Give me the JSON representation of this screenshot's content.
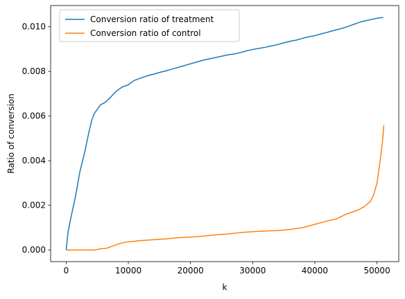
{
  "chart_data": {
    "type": "line",
    "title": "",
    "xlabel": "k",
    "ylabel": "Ratio of conversion",
    "xlim": [
      -2500,
      53500
    ],
    "ylim": [
      -0.00052,
      0.01095
    ],
    "xticks": [
      0,
      10000,
      20000,
      30000,
      40000,
      50000
    ],
    "xtick_labels": [
      "0",
      "10000",
      "20000",
      "30000",
      "40000",
      "50000"
    ],
    "yticks": [
      0.0,
      0.002,
      0.004,
      0.006,
      0.008,
      0.01
    ],
    "ytick_labels": [
      "0.000",
      "0.002",
      "0.004",
      "0.006",
      "0.008",
      "0.010"
    ],
    "grid": false,
    "legend_position": "top-left",
    "series": [
      {
        "name": "Conversion ratio of treatment",
        "color": "#1f77b4",
        "x": [
          0,
          300,
          800,
          1500,
          2200,
          3000,
          3600,
          4100,
          4500,
          5000,
          5500,
          6200,
          7000,
          8000,
          9000,
          10000,
          11000,
          12000,
          13000,
          14000,
          15000,
          16000,
          17000,
          18000,
          19000,
          20000,
          21000,
          22000,
          23000,
          24000,
          25000,
          26000,
          27000,
          28000,
          29000,
          30000,
          31000,
          32000,
          33000,
          34000,
          35000,
          36000,
          37000,
          38000,
          39000,
          40000,
          41000,
          42000,
          43000,
          44000,
          45000,
          46000,
          47000,
          48000,
          49000,
          50000,
          51000
        ],
        "y": [
          0.0,
          0.0008,
          0.0015,
          0.0024,
          0.0035,
          0.0044,
          0.0052,
          0.0058,
          0.0061,
          0.0063,
          0.0065,
          0.0066,
          0.0068,
          0.0071,
          0.0073,
          0.0074,
          0.0076,
          0.0077,
          0.0078,
          0.00787,
          0.00795,
          0.00802,
          0.0081,
          0.00818,
          0.00826,
          0.00834,
          0.00842,
          0.0085,
          0.00856,
          0.00862,
          0.00868,
          0.00874,
          0.00878,
          0.00884,
          0.00892,
          0.00898,
          0.00903,
          0.00908,
          0.00914,
          0.0092,
          0.00928,
          0.00935,
          0.0094,
          0.00948,
          0.00955,
          0.0096,
          0.00968,
          0.00975,
          0.00983,
          0.0099,
          0.00998,
          0.01008,
          0.01018,
          0.01026,
          0.01032,
          0.01038,
          0.01042
        ]
      },
      {
        "name": "Conversion ratio of control",
        "color": "#ff7f0e",
        "x": [
          0,
          4500,
          5500,
          6500,
          7500,
          8500,
          9500,
          10500,
          12000,
          14000,
          16000,
          18000,
          20000,
          22000,
          24000,
          26000,
          28000,
          30000,
          32000,
          34000,
          36000,
          38000,
          40000,
          42000,
          43500,
          45000,
          46000,
          47000,
          48000,
          49000,
          49500,
          50000,
          50300,
          50600,
          50900,
          51100
        ],
        "y": [
          0.0,
          0.0,
          5e-05,
          8e-05,
          0.00018,
          0.00028,
          0.00035,
          0.00038,
          0.00042,
          0.00046,
          0.0005,
          0.00055,
          0.00058,
          0.00062,
          0.00068,
          0.00072,
          0.00078,
          0.00082,
          0.00085,
          0.00087,
          0.00092,
          0.001,
          0.00115,
          0.0013,
          0.0014,
          0.0016,
          0.0017,
          0.0018,
          0.00195,
          0.0022,
          0.0025,
          0.003,
          0.0036,
          0.0042,
          0.0049,
          0.0056
        ]
      }
    ]
  }
}
